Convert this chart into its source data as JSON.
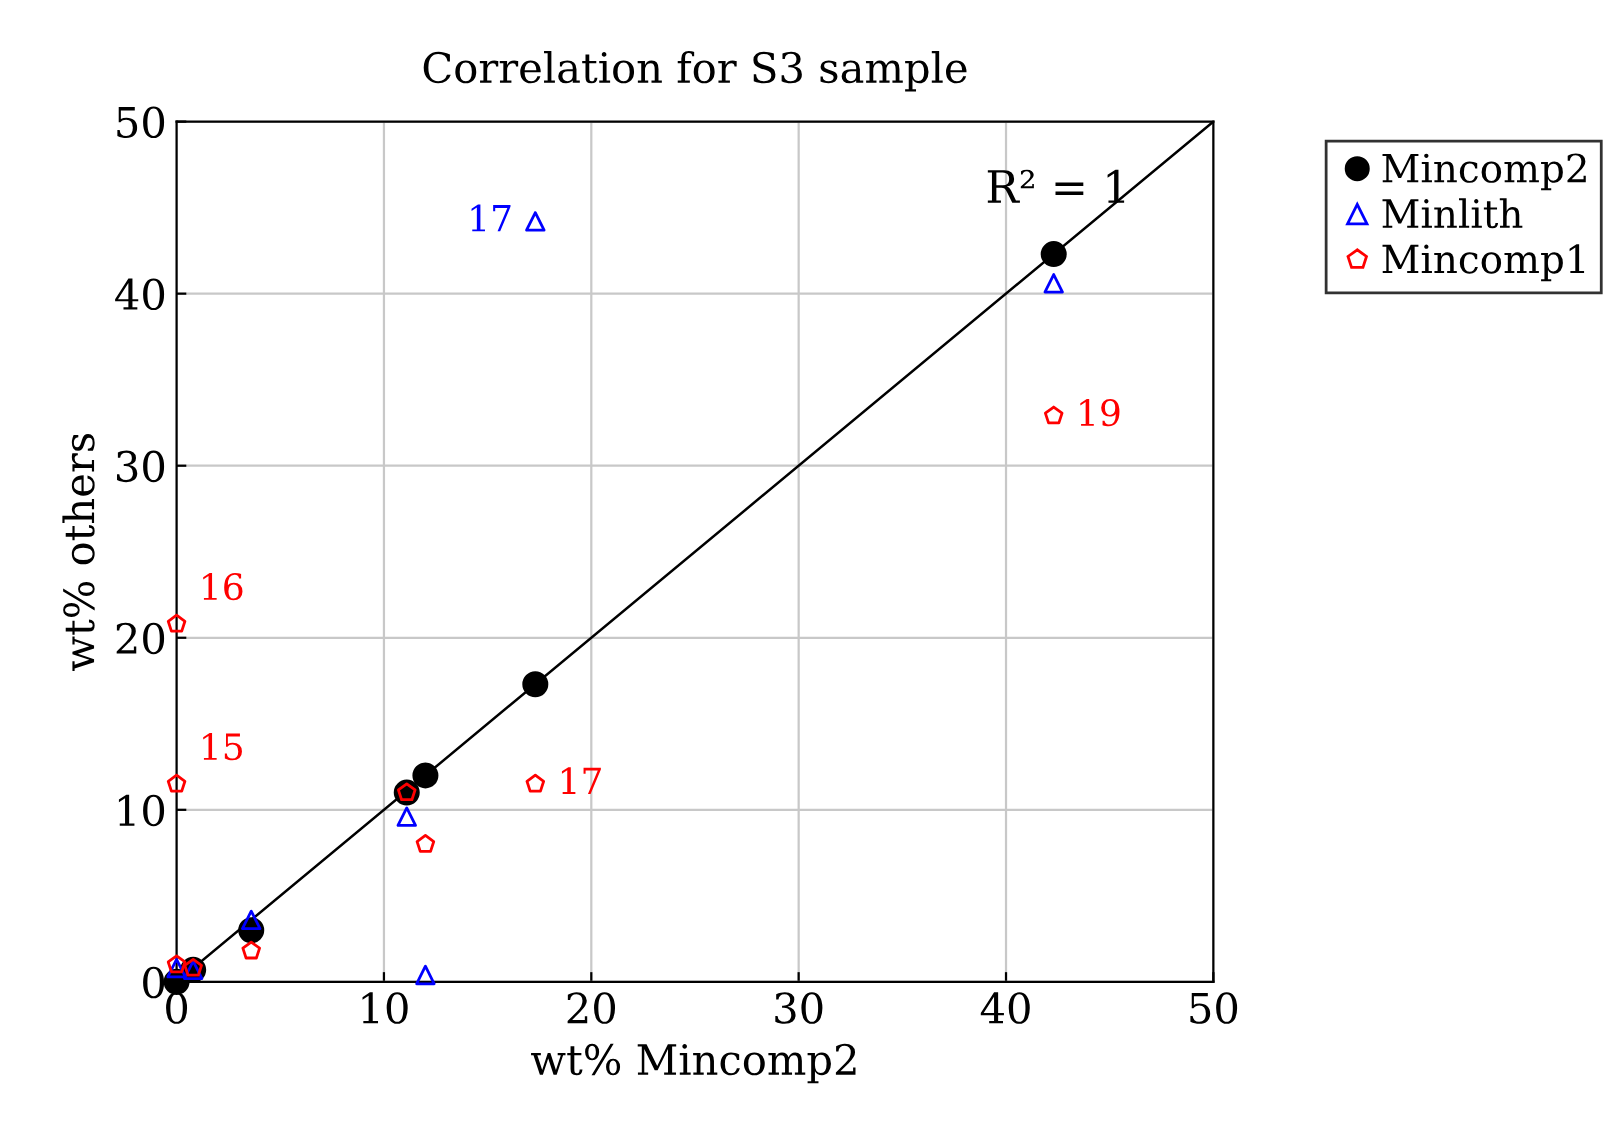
{
  "chart_data": {
    "type": "scatter",
    "title": "Correlation for S3 sample",
    "xlabel": "wt% Mincomp2",
    "ylabel": "wt% others",
    "xlim": [
      0,
      50
    ],
    "ylim": [
      0,
      50
    ],
    "xticks": [
      0,
      10,
      20,
      30,
      40,
      50
    ],
    "yticks": [
      0,
      10,
      20,
      30,
      40,
      50
    ],
    "grid": true,
    "legend": "top right",
    "series": [
      {
        "name": "Mincomp2",
        "color": "#000000",
        "marker": "circle",
        "x": [
          0,
          0.8,
          3.6,
          11.1,
          12.0,
          17.3,
          42.3
        ],
        "values": [
          0,
          0.7,
          3.0,
          11.0,
          12.0,
          17.3,
          42.3
        ]
      },
      {
        "name": "Minlith",
        "color": "#0000ff",
        "marker": "triangle",
        "x": [
          0,
          0.8,
          3.6,
          11.1,
          12.0,
          17.3,
          42.3
        ],
        "values": [
          0.8,
          0.7,
          3.6,
          9.6,
          0.4,
          44.2,
          40.6
        ]
      },
      {
        "name": "Mincomp1",
        "color": "#ff0000",
        "x": [
          0,
          0,
          0,
          0.8,
          3.6,
          11.1,
          12.0,
          17.3,
          42.3
        ],
        "values": [
          1.0,
          11.5,
          20.8,
          0.8,
          1.8,
          11.0,
          8.0,
          11.5,
          32.9
        ]
      },
      {
        "type": "line",
        "color": "#000000",
        "marker": "none",
        "x": [
          0,
          50
        ],
        "values": [
          0,
          50
        ]
      }
    ],
    "annotations": [
      "R² = 1",
      {
        "text": "17",
        "x": 17.3,
        "y": 44.2
      },
      {
        "text": "19",
        "x": 42.3,
        "y": 32.9
      },
      {
        "text": "16",
        "x": 0,
        "y": 20.8
      },
      {
        "text": "15",
        "x": 0,
        "y": 11.5
      },
      {
        "text": "17",
        "x": 17.3,
        "y": 11.5
      }
    ]
  }
}
